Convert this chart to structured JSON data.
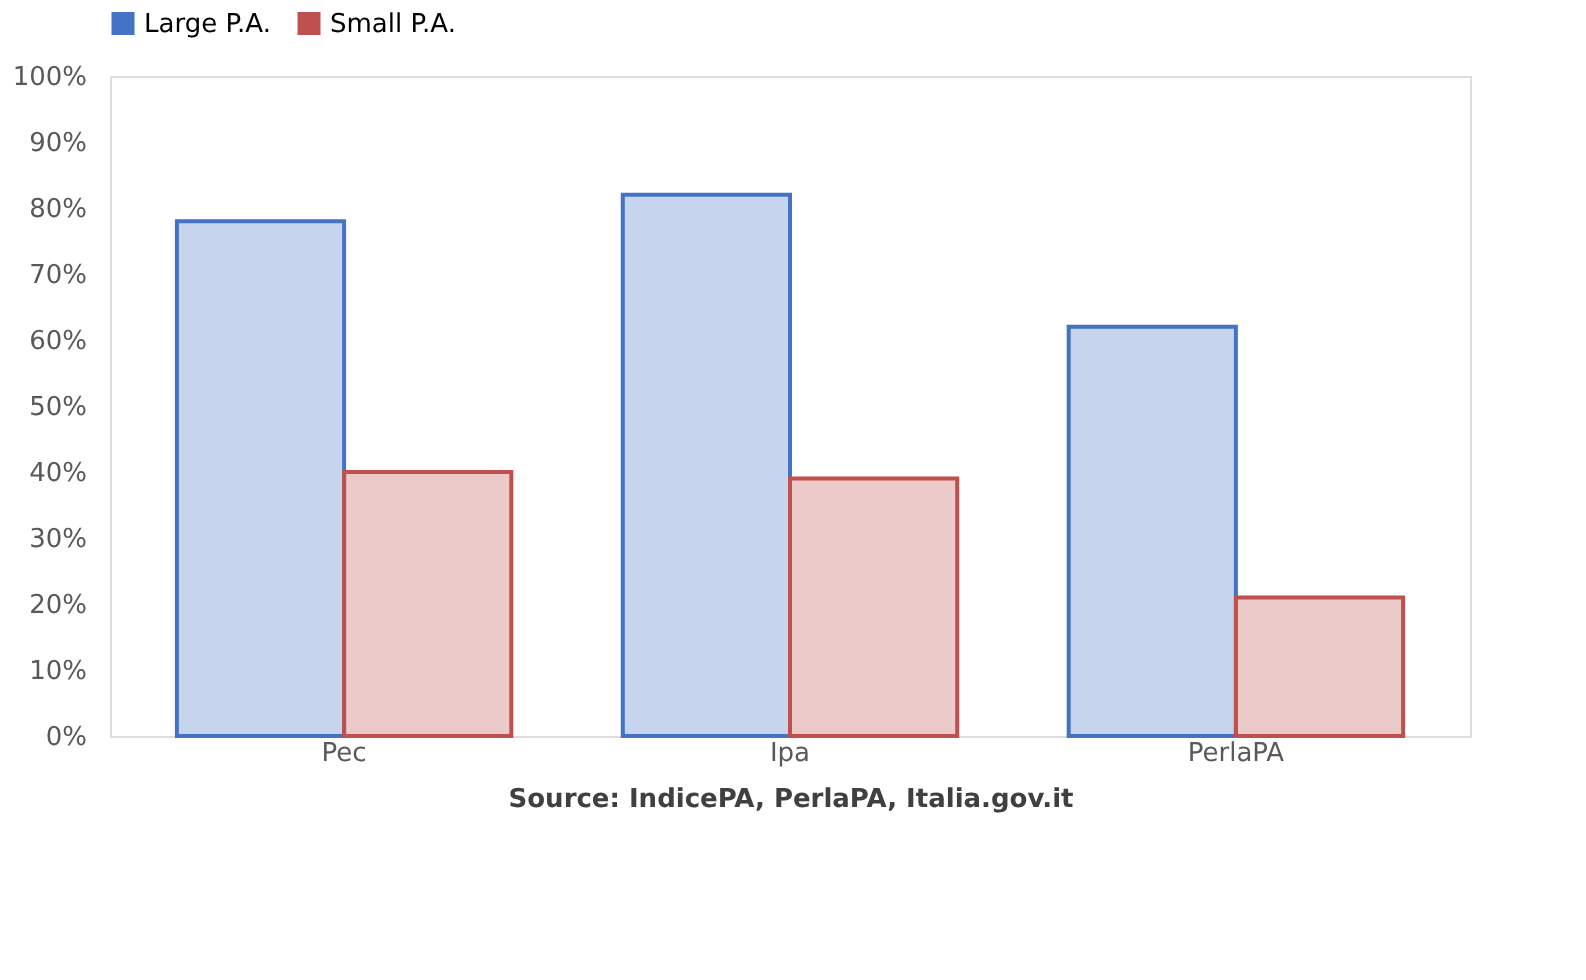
{
  "chart_data": {
    "type": "bar",
    "categories": [
      "Pec",
      "Ipa",
      "PerlaPA"
    ],
    "series": [
      {
        "name": "Large P.A.",
        "color": "#4472c4",
        "values": [
          78,
          82,
          62
        ]
      },
      {
        "name": "Small P.A.",
        "color": "#c0504d",
        "values": [
          40,
          39,
          21
        ]
      }
    ],
    "ylim": [
      0,
      100
    ],
    "yticks": [
      {
        "value": 0,
        "label": "0%"
      },
      {
        "value": 10,
        "label": "10%"
      },
      {
        "value": 20,
        "label": "20%"
      },
      {
        "value": 30,
        "label": "30%"
      },
      {
        "value": 40,
        "label": "40%"
      },
      {
        "value": 50,
        "label": "50%"
      },
      {
        "value": 60,
        "label": "60%"
      },
      {
        "value": 70,
        "label": "70%"
      },
      {
        "value": 80,
        "label": "80%"
      },
      {
        "value": 90,
        "label": "90%"
      },
      {
        "value": 100,
        "label": "100%"
      }
    ],
    "legend": "top",
    "grid": false,
    "annotations": [
      "Source: IndicePA, PerlaPA, Italia.gov.it"
    ]
  }
}
